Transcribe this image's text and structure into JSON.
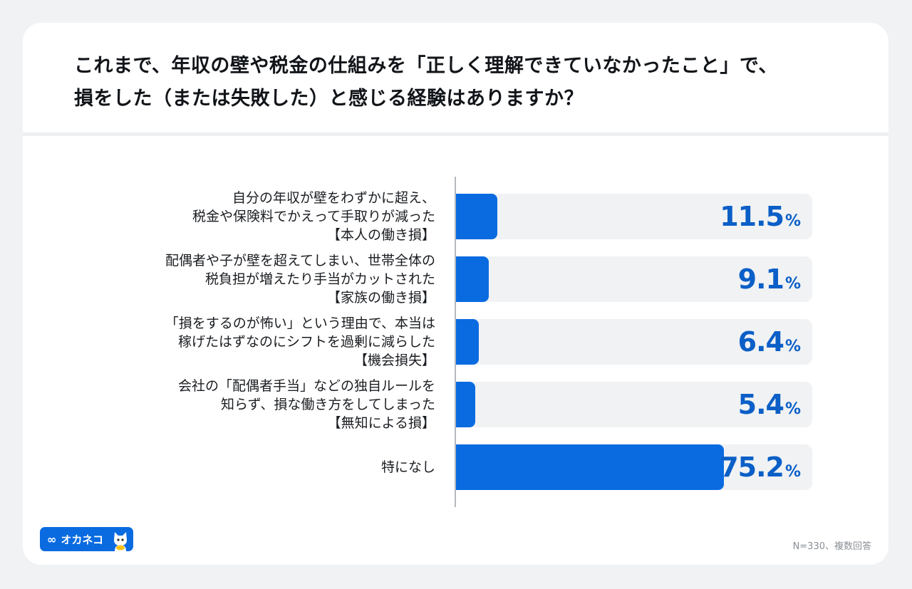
{
  "header": {
    "title_line1": "これまで、年収の壁や税金の仕組みを「正しく理解できていなかったこと」で、",
    "title_line2": "損をした（または失敗した）と感じる経験はありますか？"
  },
  "rows": [
    {
      "label": "自分の年収が壁をわずかに超え、\n税金や保険料でかえって手取りが減った\n【本人の働き損】",
      "value": "11.5",
      "unit": "%"
    },
    {
      "label": "配偶者や子が壁を超えてしまい、世帯全体の\n税負担が増えたり手当がカットされた\n【家族の働き損】",
      "value": "9.1",
      "unit": "%"
    },
    {
      "label": "「損をするのが怖い」という理由で、本当は\n稼げたはずなのにシフトを過剰に減らした\n【機会損失】",
      "value": "6.4",
      "unit": "%"
    },
    {
      "label": "会社の「配偶者手当」などの独自ルールを\n知らず、損な働き方をしてしまった\n【無知による損】",
      "value": "5.4",
      "unit": "%"
    },
    {
      "label": "特になし",
      "value": "75.2",
      "unit": "%"
    }
  ],
  "footer": {
    "logo_text": "オカネコ",
    "note": "N=330、複数回答"
  },
  "colors": {
    "bar": "#0a6be0",
    "value_text": "#0b5fc7",
    "track": "#f0f2f4"
  },
  "chart_data": {
    "type": "bar",
    "orientation": "horizontal",
    "title": "これまで、年収の壁や税金の仕組みを「正しく理解できていなかったこと」で、損をした（または失敗した）と感じる経験はありますか？",
    "categories": [
      "自分の年収が壁をわずかに超え、税金や保険料でかえって手取りが減った【本人の働き損】",
      "配偶者や子が壁を超えてしまい、世帯全体の税負担が増えたり手当がカットされた【家族の働き損】",
      "「損をするのが怖い」という理由で、本当は稼げたはずなのにシフトを過剰に減らした【機会損失】",
      "会社の「配偶者手当」などの独自ルールを知らず、損な働き方をしてしまった【無知による損】",
      "特になし"
    ],
    "values": [
      11.5,
      9.1,
      6.4,
      5.4,
      75.2
    ],
    "unit": "%",
    "xlabel": "",
    "ylabel": "",
    "xlim": [
      0,
      100
    ],
    "grid": false,
    "legend": null,
    "annotation": "N=330、複数回答"
  }
}
